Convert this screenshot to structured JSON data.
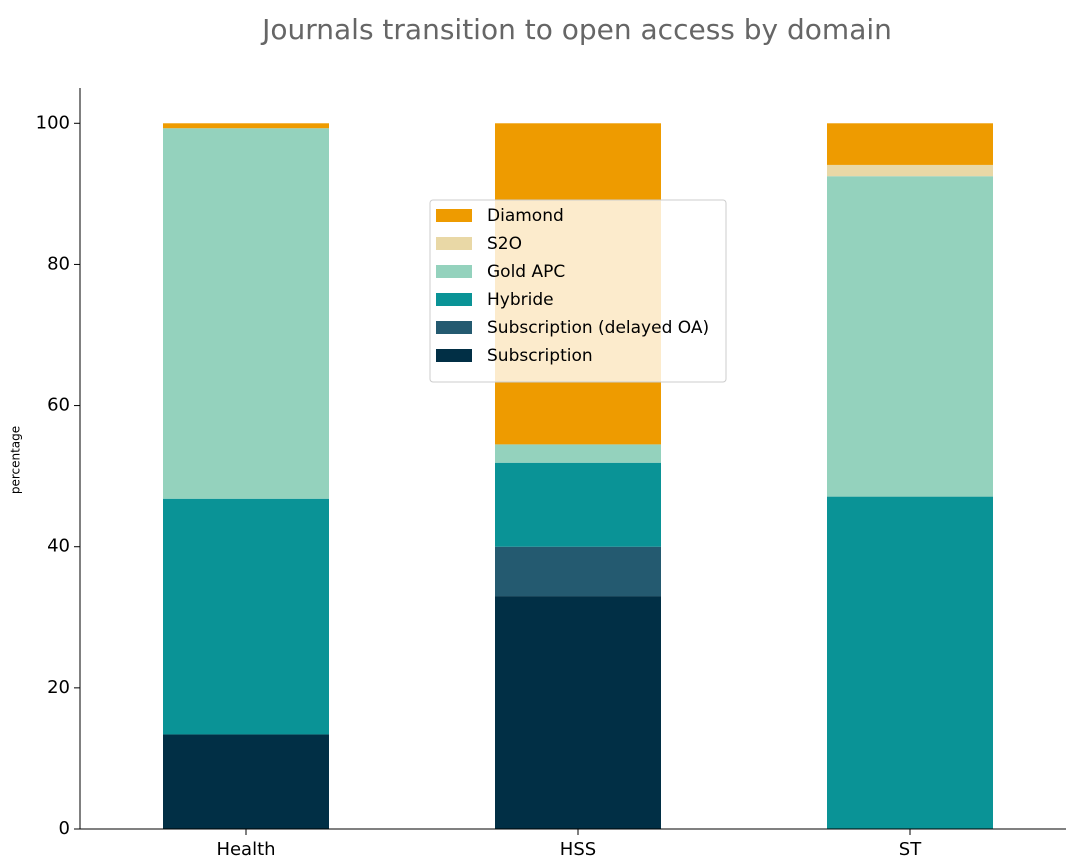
{
  "chart_data": {
    "type": "stacked_bar",
    "title": "Journals transition to open access by domain",
    "y_label": "percentage",
    "categories": [
      "Health",
      "HSS",
      "ST"
    ],
    "series": [
      {
        "name": "Subscription",
        "color": "#012f45",
        "values": [
          13.4,
          33.0,
          0
        ]
      },
      {
        "name": "Subscription (delayed OA)",
        "color": "#245a70",
        "values": [
          0,
          7.0,
          0
        ]
      },
      {
        "name": "Hybride",
        "color": "#0a9396",
        "values": [
          33.4,
          11.9,
          47.1
        ]
      },
      {
        "name": "Gold APC",
        "color": "#94d2bd",
        "values": [
          52.5,
          2.6,
          45.4
        ]
      },
      {
        "name": "S2O",
        "color": "#e9d8a6",
        "values": [
          0,
          0,
          1.6
        ]
      },
      {
        "name": "Diamond",
        "color": "#ee9b00",
        "values": [
          0.7,
          45.5,
          5.9
        ]
      }
    ],
    "ylim": [
      0,
      105
    ],
    "yticks": [
      0,
      20,
      40,
      60,
      80,
      100
    ],
    "legend": "upper center"
  }
}
